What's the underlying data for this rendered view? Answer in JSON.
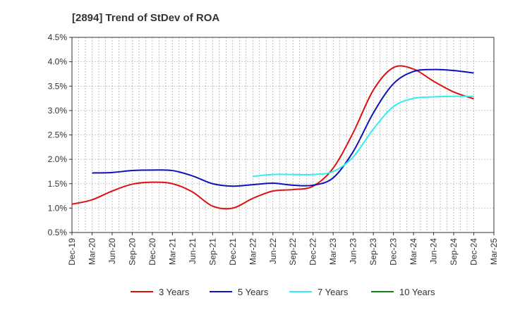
{
  "chart_data": {
    "type": "line",
    "title": "[2894]  Trend of StDev of ROA",
    "xlabel": "",
    "ylabel": "",
    "x_ticks": [
      "Dec-19",
      "Mar-20",
      "Jun-20",
      "Sep-20",
      "Dec-20",
      "Mar-21",
      "Jun-21",
      "Sep-21",
      "Dec-21",
      "Mar-22",
      "Jun-22",
      "Sep-22",
      "Dec-22",
      "Mar-23",
      "Jun-23",
      "Sep-23",
      "Dec-23",
      "Mar-24",
      "Jun-24",
      "Sep-24",
      "Dec-24",
      "Mar-25"
    ],
    "y_ticks": [
      "0.5%",
      "1.0%",
      "1.5%",
      "2.0%",
      "2.5%",
      "3.0%",
      "3.5%",
      "4.0%",
      "4.5%"
    ],
    "ylim": [
      0.5,
      4.5
    ],
    "grid": true,
    "legend_position": "bottom",
    "series": [
      {
        "name": "3 Years",
        "color": "#dd1111",
        "points": [
          [
            0,
            1.08
          ],
          [
            1,
            1.17
          ],
          [
            2,
            1.35
          ],
          [
            3,
            1.49
          ],
          [
            4,
            1.53
          ],
          [
            5,
            1.5
          ],
          [
            6,
            1.33
          ],
          [
            7,
            1.04
          ],
          [
            8,
            1.0
          ],
          [
            9,
            1.2
          ],
          [
            10,
            1.35
          ],
          [
            11,
            1.38
          ],
          [
            12,
            1.45
          ],
          [
            13,
            1.82
          ],
          [
            14,
            2.55
          ],
          [
            15,
            3.42
          ],
          [
            16,
            3.88
          ],
          [
            17,
            3.85
          ],
          [
            18,
            3.6
          ],
          [
            19,
            3.38
          ],
          [
            20,
            3.24
          ]
        ]
      },
      {
        "name": "5 Years",
        "color": "#1111bb",
        "points": [
          [
            1,
            1.72
          ],
          [
            2,
            1.73
          ],
          [
            3,
            1.77
          ],
          [
            4,
            1.78
          ],
          [
            5,
            1.77
          ],
          [
            6,
            1.66
          ],
          [
            7,
            1.5
          ],
          [
            8,
            1.45
          ],
          [
            9,
            1.48
          ],
          [
            10,
            1.51
          ],
          [
            11,
            1.47
          ],
          [
            12,
            1.47
          ],
          [
            13,
            1.62
          ],
          [
            14,
            2.16
          ],
          [
            15,
            2.95
          ],
          [
            16,
            3.55
          ],
          [
            17,
            3.8
          ],
          [
            18,
            3.84
          ],
          [
            19,
            3.82
          ],
          [
            20,
            3.77
          ]
        ]
      },
      {
        "name": "7 Years",
        "color": "#33eeee",
        "points": [
          [
            9,
            1.65
          ],
          [
            10,
            1.69
          ],
          [
            11,
            1.69
          ],
          [
            12,
            1.69
          ],
          [
            13,
            1.75
          ],
          [
            14,
            2.05
          ],
          [
            15,
            2.62
          ],
          [
            16,
            3.08
          ],
          [
            17,
            3.25
          ],
          [
            18,
            3.28
          ],
          [
            19,
            3.29
          ],
          [
            20,
            3.29
          ]
        ]
      },
      {
        "name": "10 Years",
        "color": "#118811",
        "points": []
      }
    ]
  }
}
